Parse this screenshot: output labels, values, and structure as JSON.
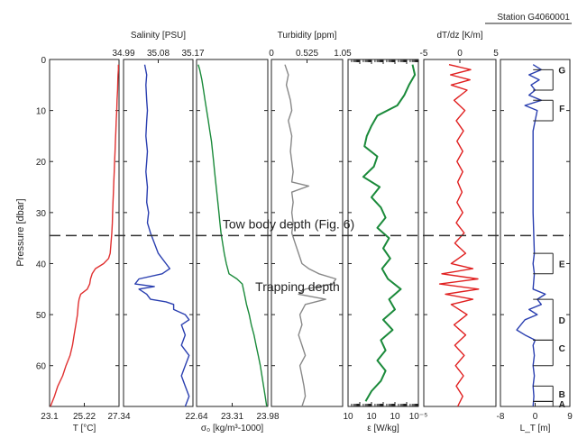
{
  "station": "Station G4060001",
  "chart_data": [
    {
      "type": "line",
      "panel": "temperature",
      "xlabel": "T [°C]",
      "x_ticks_bottom": [
        "23.1",
        "25.22",
        "27.34"
      ],
      "xlim": [
        23.1,
        27.34
      ],
      "ylabel": "Pressure [dbar]",
      "ylim": [
        0,
        68
      ],
      "y_ticks": [
        0,
        10,
        20,
        30,
        40,
        50,
        60
      ],
      "color": "#e03030",
      "series": [
        {
          "y": [
            1,
            2,
            3,
            4,
            6,
            8,
            10,
            12,
            14,
            16,
            18,
            20,
            22,
            24,
            26,
            28,
            30,
            32,
            34,
            36,
            38,
            39,
            40,
            41,
            42,
            43,
            44,
            45,
            46,
            47,
            48,
            50,
            52,
            54,
            56,
            58,
            60,
            62,
            64,
            66,
            68
          ],
          "x": [
            27.3,
            27.3,
            27.28,
            27.27,
            27.25,
            27.22,
            27.2,
            27.17,
            27.15,
            27.12,
            27.1,
            27.07,
            27.05,
            27.02,
            27.0,
            26.97,
            26.95,
            26.93,
            26.9,
            26.85,
            26.8,
            26.7,
            26.4,
            25.9,
            25.7,
            25.6,
            25.55,
            25.4,
            25.0,
            24.9,
            24.85,
            24.8,
            24.7,
            24.6,
            24.5,
            24.35,
            24.1,
            23.9,
            23.6,
            23.4,
            23.15
          ]
        }
      ]
    },
    {
      "type": "line",
      "panel": "salinity",
      "title": "Salinity [PSU]",
      "x_ticks_top": [
        "34.99",
        "35.08",
        "35.17"
      ],
      "xlim": [
        34.99,
        35.17
      ],
      "ylim": [
        0,
        68
      ],
      "color": "#2a3fb0",
      "series": [
        {
          "y": [
            1,
            3,
            5,
            8,
            10,
            12,
            15,
            18,
            20,
            22,
            25,
            28,
            30,
            32,
            34,
            36,
            38,
            39,
            40,
            41,
            42,
            43,
            44,
            44.5,
            45,
            46,
            47,
            47.5,
            48,
            49,
            50,
            51,
            52,
            54,
            56,
            58,
            60,
            62,
            64,
            66,
            68
          ],
          "x": [
            35.045,
            35.05,
            35.048,
            35.05,
            35.052,
            35.05,
            35.048,
            35.052,
            35.05,
            35.048,
            35.052,
            35.05,
            35.055,
            35.052,
            35.06,
            35.07,
            35.08,
            35.09,
            35.1,
            35.11,
            35.09,
            35.03,
            35.02,
            35.07,
            35.03,
            35.05,
            35.06,
            35.1,
            35.12,
            35.12,
            35.15,
            35.16,
            35.14,
            35.15,
            35.14,
            35.16,
            35.15,
            35.14,
            35.15,
            35.16,
            35.15
          ]
        }
      ]
    },
    {
      "type": "line",
      "panel": "density",
      "xlabel": "σ₀ [kg/m³-1000]",
      "x_ticks_bottom": [
        "22.64",
        "23.31",
        "23.98"
      ],
      "xlim": [
        22.64,
        23.98
      ],
      "ylim": [
        0,
        68
      ],
      "color": "#1a8a3a",
      "series": [
        {
          "y": [
            1,
            2,
            4,
            6,
            8,
            10,
            12,
            14,
            16,
            18,
            20,
            22,
            24,
            26,
            28,
            30,
            32,
            34,
            36,
            38,
            40,
            42,
            43,
            44,
            45,
            46,
            48,
            50,
            52,
            54,
            56,
            58,
            60,
            62,
            64,
            66,
            68
          ],
          "x": [
            22.67,
            22.7,
            22.74,
            22.77,
            22.8,
            22.83,
            22.86,
            22.89,
            22.92,
            22.94,
            22.96,
            22.98,
            23.0,
            23.02,
            23.04,
            23.06,
            23.08,
            23.1,
            23.13,
            23.16,
            23.2,
            23.25,
            23.4,
            23.5,
            23.52,
            23.54,
            23.58,
            23.63,
            23.67,
            23.72,
            23.76,
            23.8,
            23.84,
            23.87,
            23.9,
            23.93,
            23.96
          ]
        }
      ]
    },
    {
      "type": "line",
      "panel": "turbidity",
      "title": "Turbidity [ppm]",
      "x_ticks_top": [
        "0",
        "0.525",
        "1.05"
      ],
      "xlim": [
        0,
        1.05
      ],
      "ylim": [
        0,
        68
      ],
      "color": "#888888",
      "series": [
        {
          "y": [
            1,
            3,
            5,
            8,
            10,
            12,
            15,
            18,
            20,
            22,
            24,
            24.8,
            26,
            28,
            30,
            32,
            34,
            36,
            38,
            40,
            41,
            42,
            43,
            44,
            45,
            46,
            47,
            48,
            50,
            52,
            54,
            56,
            58,
            60,
            62,
            64,
            66,
            68
          ],
          "x": [
            0.2,
            0.25,
            0.22,
            0.28,
            0.3,
            0.25,
            0.3,
            0.28,
            0.3,
            0.32,
            0.3,
            0.55,
            0.3,
            0.32,
            0.3,
            0.32,
            0.3,
            0.35,
            0.4,
            0.45,
            0.55,
            0.7,
            0.95,
            0.9,
            0.5,
            0.4,
            0.8,
            0.5,
            0.42,
            0.45,
            0.4,
            0.45,
            0.5,
            0.42,
            0.45,
            0.48,
            0.5,
            0.45
          ]
        }
      ]
    },
    {
      "type": "line",
      "panel": "dissipation",
      "xlabel": "ε [W/kg]",
      "x_ticks_bottom": [
        "10",
        "10",
        "10",
        "10⁻⁵"
      ],
      "log_x": true,
      "xlim": [
        -10,
        -4
      ],
      "ylim": [
        0,
        68
      ],
      "color": "#1a8a3a",
      "series": [
        {
          "y": [
            1,
            3,
            5,
            7,
            9,
            11,
            13,
            15,
            17,
            19,
            21,
            23,
            25,
            27,
            29,
            31,
            33,
            35,
            37,
            39,
            41,
            43,
            45,
            47,
            49,
            51,
            53,
            55,
            57,
            59,
            61,
            63,
            65,
            67
          ],
          "x": [
            -4.5,
            -4.3,
            -4.8,
            -5.2,
            -5.8,
            -7.5,
            -8.0,
            -8.4,
            -8.6,
            -7.5,
            -7.8,
            -8.7,
            -7.3,
            -8.0,
            -7.2,
            -6.8,
            -7.5,
            -6.5,
            -7.0,
            -6.4,
            -7.1,
            -6.6,
            -5.5,
            -6.5,
            -6.0,
            -7.0,
            -6.2,
            -7.2,
            -6.8,
            -7.5,
            -6.8,
            -7.2,
            -8.0,
            -8.5
          ]
        }
      ]
    },
    {
      "type": "line",
      "panel": "temperature-gradient",
      "title": "dT/dz [K/m]",
      "x_ticks_top": [
        "-5",
        "0",
        "5"
      ],
      "xlim": [
        -5,
        5
      ],
      "ylim": [
        0,
        68
      ],
      "color": "#e02020",
      "series": [
        {
          "y": [
            1,
            2,
            3,
            4,
            5,
            6,
            8,
            10,
            12,
            14,
            16,
            18,
            20,
            22,
            24,
            26,
            28,
            30,
            32,
            34,
            36,
            38,
            40,
            41,
            42,
            43,
            44,
            45,
            46,
            47,
            48,
            50,
            52,
            54,
            56,
            58,
            60,
            62,
            64,
            66,
            68
          ],
          "x": [
            -1.5,
            1.5,
            -1.3,
            1.4,
            -1.2,
            1.0,
            -0.8,
            0.7,
            -0.5,
            0.5,
            -0.4,
            0.4,
            -0.4,
            0.4,
            -0.3,
            0.3,
            -0.4,
            0.4,
            -0.5,
            0.6,
            -0.7,
            0.8,
            -1.2,
            1.8,
            -2.5,
            2.5,
            -2.8,
            2.6,
            -2.0,
            1.8,
            -1.2,
            1.0,
            -0.8,
            0.8,
            -0.7,
            0.6,
            -0.6,
            0.5,
            -0.5,
            0.4,
            -0.3
          ]
        }
      ]
    },
    {
      "type": "line",
      "panel": "thorpe-scale",
      "xlabel": "L_T [m]",
      "x_ticks_bottom": [
        "-8",
        "0",
        "9"
      ],
      "xlim": [
        -8,
        9
      ],
      "ylim": [
        0,
        68
      ],
      "color": "#2a3fb0",
      "series": [
        {
          "y": [
            1,
            2,
            3,
            4,
            5,
            6,
            7,
            8,
            9,
            10,
            12,
            14,
            20,
            30,
            38,
            40,
            42,
            45,
            46,
            47,
            48,
            49,
            50,
            51,
            52,
            53,
            54,
            55,
            56,
            58,
            60,
            62,
            64,
            66,
            68
          ],
          "x": [
            0,
            2,
            -1,
            1.5,
            -0.5,
            0.5,
            -1,
            2,
            -2,
            1,
            0.5,
            0,
            0,
            0,
            0.3,
            0,
            0.3,
            0,
            3,
            1,
            2,
            -1,
            1,
            -2,
            -3,
            -4,
            -2,
            0.5,
            0,
            0.3,
            0,
            0.3,
            0,
            0.2,
            0
          ]
        }
      ]
    }
  ],
  "annotations": {
    "tow": "Tow body depth (Fig. 6)",
    "tow_pressure": 34.5,
    "trap": "Trapping depth",
    "trap_pressure": 44.5
  },
  "thorpe_labels": [
    {
      "label": "G",
      "pressure": 2,
      "top": 2,
      "bottom": 6
    },
    {
      "label": "F",
      "pressure": 9.5,
      "top": 8,
      "bottom": 12
    },
    {
      "label": "E",
      "pressure": 40,
      "top": 38,
      "bottom": 42
    },
    {
      "label": "D",
      "pressure": 51,
      "top": 47,
      "bottom": 55
    },
    {
      "label": "C",
      "pressure": 56.5,
      "top": 55,
      "bottom": 60
    },
    {
      "label": "B",
      "pressure": 65.5,
      "top": 64,
      "bottom": 67
    },
    {
      "label": "A",
      "pressure": 67.5,
      "top": 67,
      "bottom": 68
    }
  ]
}
